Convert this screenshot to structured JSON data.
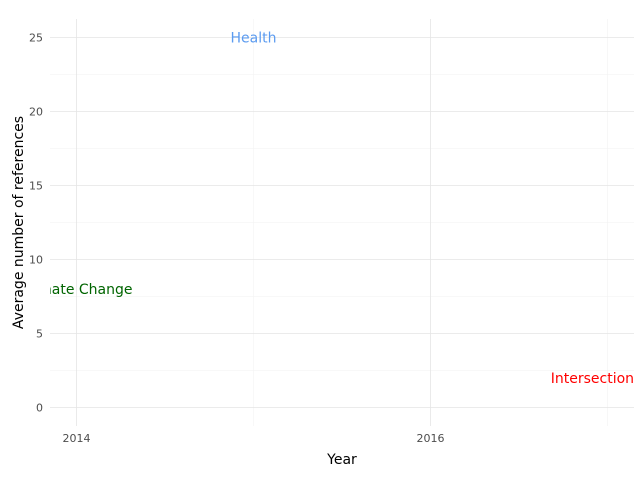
{
  "chart_data": {
    "type": "scatter",
    "title": "",
    "xlabel": "Year",
    "ylabel": "Average number of references",
    "xlim": [
      2013.85,
      2017.15
    ],
    "ylim": [
      -1.25,
      26.25
    ],
    "x_ticks": [
      2014,
      2016
    ],
    "y_ticks": [
      0,
      5,
      10,
      15,
      20,
      25
    ],
    "grid": true,
    "points": [
      {
        "x": 2014.0,
        "y": 8.0,
        "label": "Climate Change",
        "color": "#006400"
      },
      {
        "x": 2015.0,
        "y": 25.0,
        "label": "Health",
        "color": "#5b9bf0"
      },
      {
        "x": 2017.0,
        "y": 2.0,
        "label": "Intersectionality",
        "color": "#ff0000"
      }
    ]
  }
}
